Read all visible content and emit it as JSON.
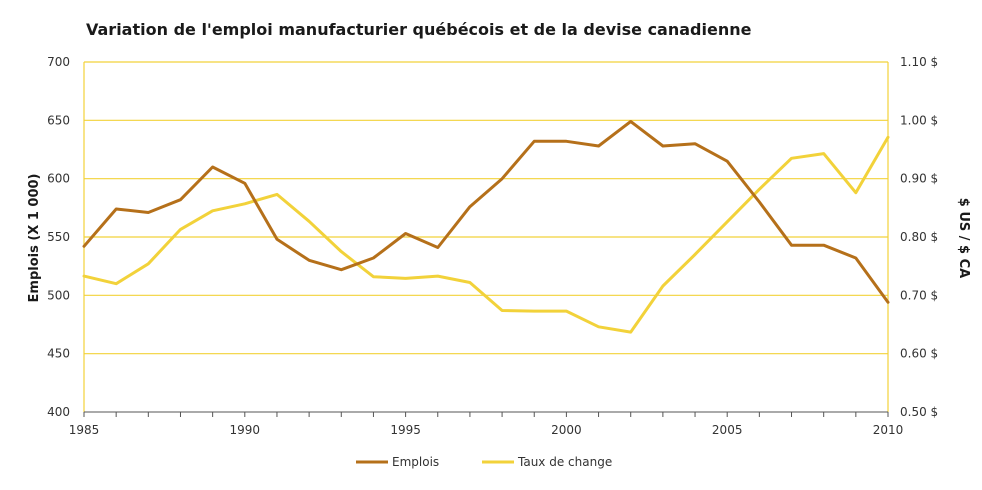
{
  "chart_data": {
    "type": "line",
    "title": "Variation de l'emploi manufacturier québécois et de la devise canadienne",
    "ylabel": "Emplois (X 1 000)",
    "y2label": "$ US / $ CA",
    "xlim": [
      1985,
      2010
    ],
    "ylim": [
      400,
      700
    ],
    "y2lim": [
      0.5,
      1.1
    ],
    "x_ticks": [
      1985,
      1990,
      1995,
      2000,
      2005,
      2010
    ],
    "y_ticks": [
      "400",
      "450",
      "500",
      "550",
      "600",
      "650",
      "700"
    ],
    "y2_ticks": [
      "0.50 $",
      "0.60 $",
      "0.70 $",
      "0.80 $",
      "0.90 $",
      "1.00 $",
      "1.10 $"
    ],
    "grid": true,
    "legend_position": "bottom",
    "series": [
      {
        "name": "Emplois",
        "axis": "left",
        "color": "#b5701a",
        "x": [
          1985,
          1986,
          1987,
          1988,
          1989,
          1990,
          1991,
          1992,
          1993,
          1994,
          1995,
          1996,
          1997,
          1998,
          1999,
          2000,
          2001,
          2002,
          2003,
          2004,
          2005,
          2006,
          2007,
          2008,
          2009,
          2010
        ],
        "values": [
          542,
          574,
          571,
          582,
          610,
          596,
          548,
          530,
          522,
          532,
          553,
          541,
          576,
          600,
          632,
          632,
          628,
          649,
          628,
          630,
          615,
          580,
          543,
          543,
          532,
          494
        ]
      },
      {
        "name": "Taux de change",
        "axis": "right",
        "color": "#f2d23a",
        "x": [
          1985,
          1986,
          1987,
          1988,
          1989,
          1990,
          1991,
          1992,
          1993,
          1994,
          1995,
          1996,
          1997,
          1998,
          1999,
          2000,
          2001,
          2002,
          2003,
          2004,
          2005,
          2006,
          2007,
          2008,
          2009,
          2010
        ],
        "values": [
          0.733,
          0.72,
          0.754,
          0.813,
          0.845,
          0.857,
          0.873,
          0.827,
          0.775,
          0.732,
          0.729,
          0.733,
          0.722,
          0.674,
          0.673,
          0.673,
          0.646,
          0.637,
          0.716,
          0.77,
          0.826,
          0.882,
          0.935,
          0.943,
          0.876,
          0.971
        ]
      }
    ]
  }
}
